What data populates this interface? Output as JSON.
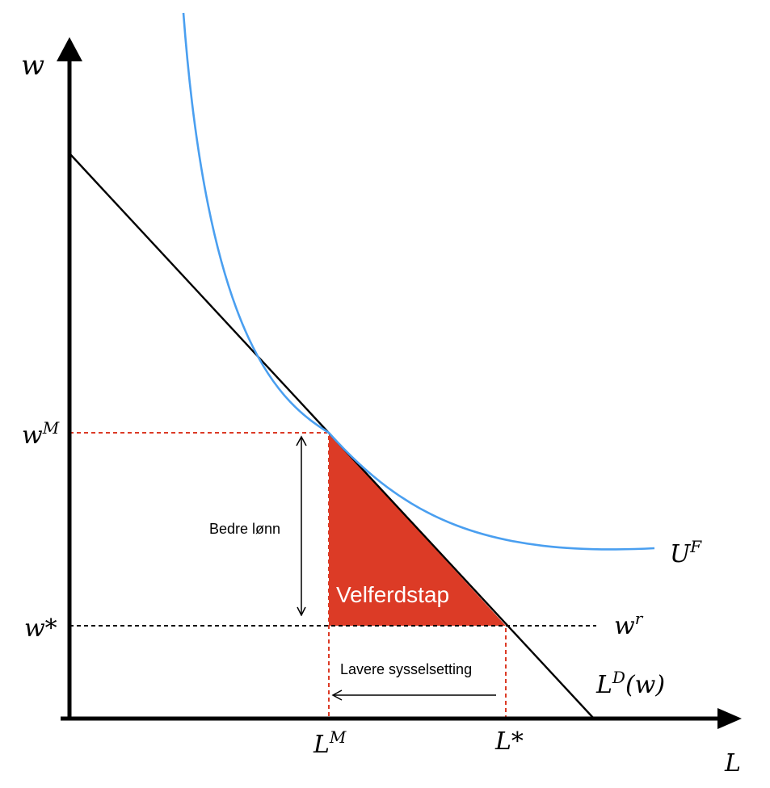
{
  "axes": {
    "y_label": "w",
    "x_label": "L"
  },
  "ticks": {
    "wM_base": "w",
    "wM_sup": "M",
    "wstar": "w*",
    "LM_base": "L",
    "LM_sup": "M",
    "Lstar": "L*"
  },
  "curves": {
    "UF_base": "U",
    "UF_sup": "F",
    "wr_base": "w",
    "wr_sup": "r",
    "LD_base": "L",
    "LD_sup": "D",
    "LD_arg": "(w)"
  },
  "annotations": {
    "deadweight_loss": "Velferdstap",
    "better_wage": "Bedre lønn",
    "lower_employment": "Lavere sysselsetting"
  },
  "colors": {
    "axis": "#000000",
    "labor_demand": "#000000",
    "indifference_curve": "#4a9ff0",
    "loss_area": "#dc3b26",
    "guide_red": "#dc3b26",
    "guide_black": "#000000"
  }
}
